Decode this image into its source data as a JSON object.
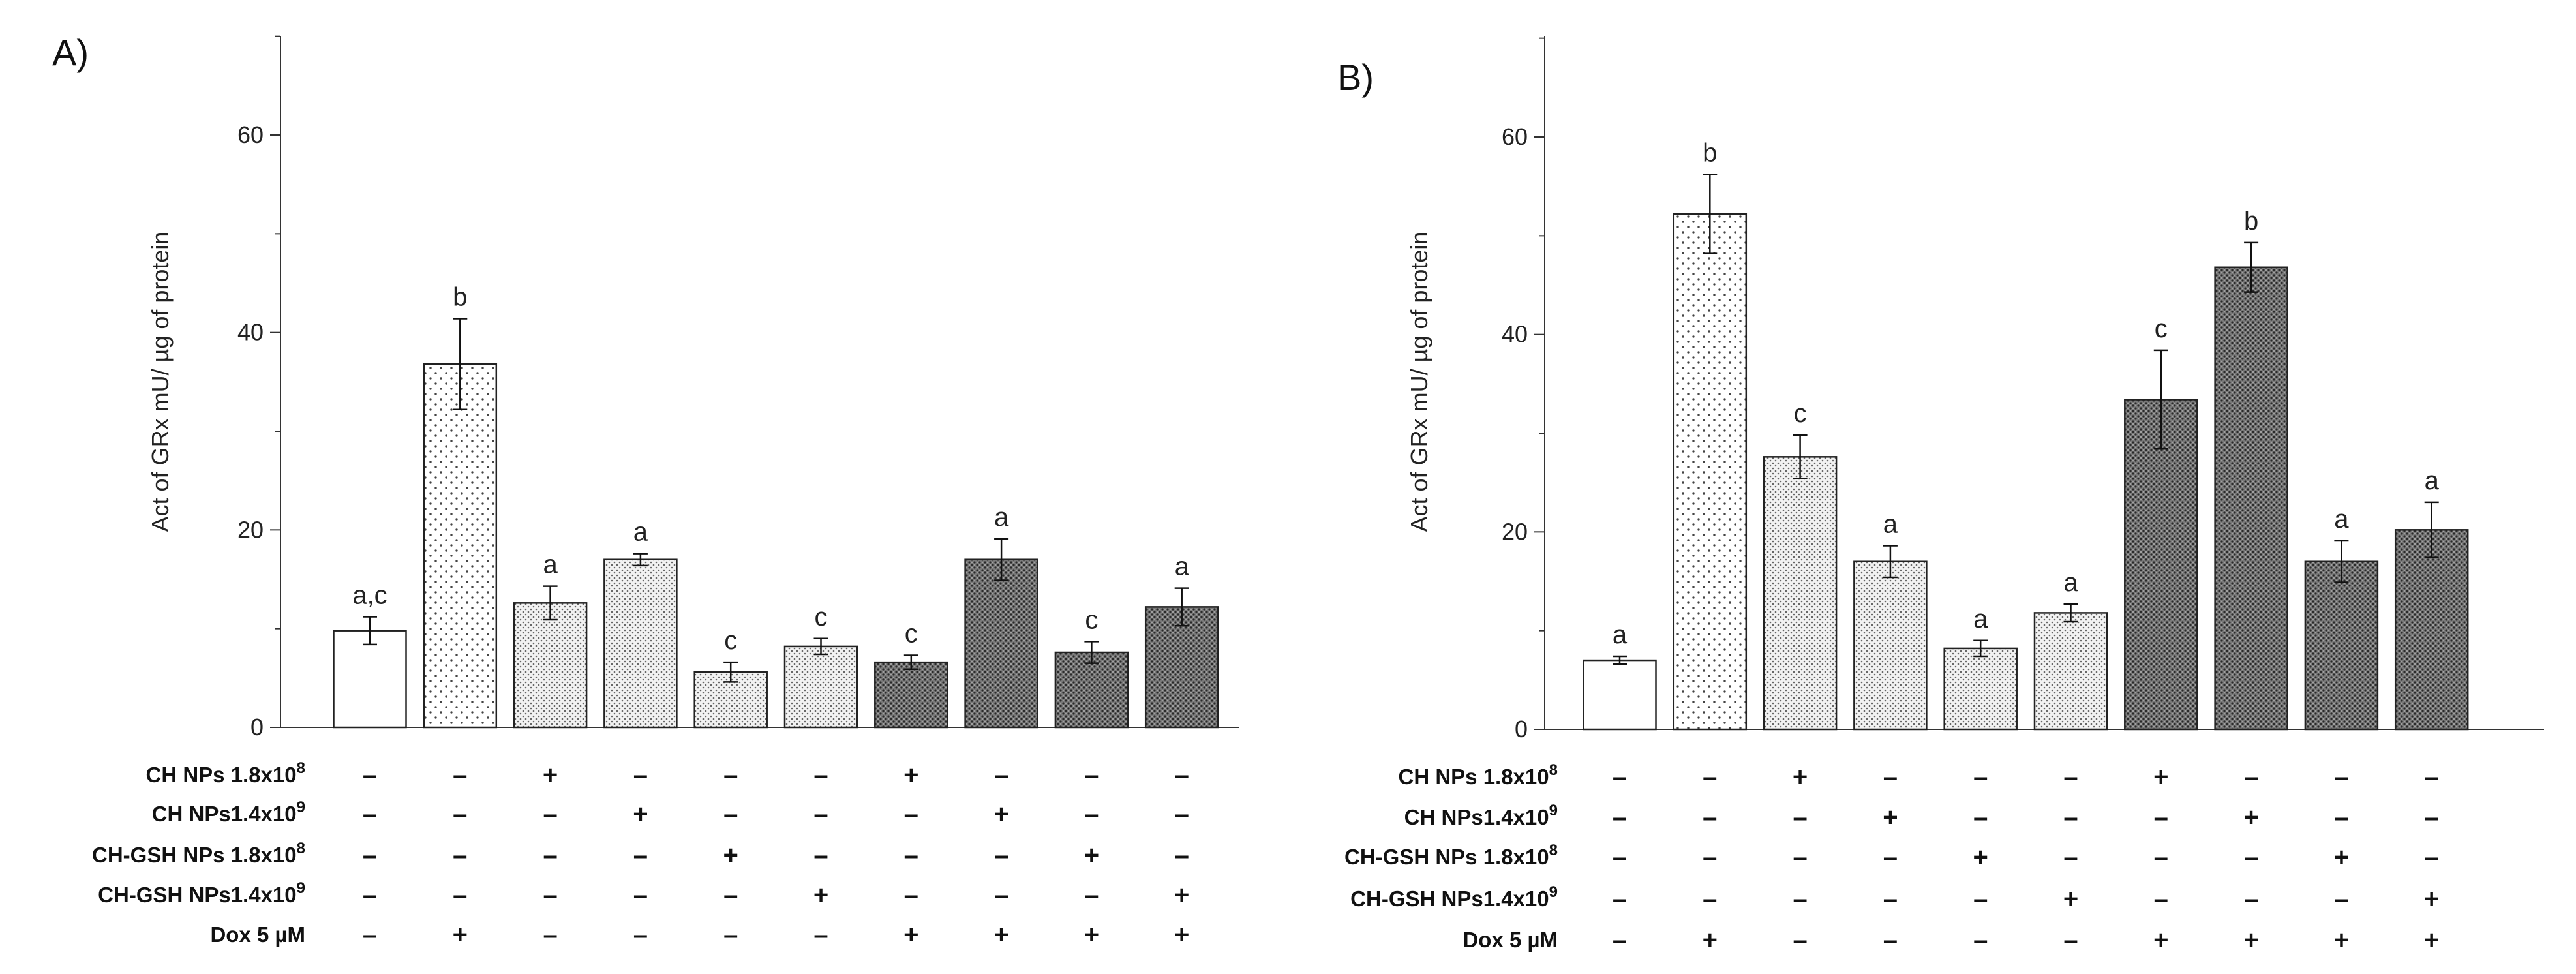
{
  "chart_data": [
    {
      "panel": "A)",
      "type": "bar",
      "ylabel": "Act of GRx mU/ µg of protein",
      "ylim": [
        0,
        70
      ],
      "yticks": [
        0,
        20,
        40,
        60
      ],
      "values": [
        9.8,
        36.8,
        12.6,
        17.0,
        5.6,
        8.2,
        6.6,
        17.0,
        7.6,
        12.2
      ],
      "errors": [
        1.4,
        4.6,
        1.7,
        0.6,
        1.0,
        0.8,
        0.7,
        2.1,
        1.1,
        1.9
      ],
      "significance": [
        "a,c",
        "b",
        "a",
        "a",
        "c",
        "c",
        "c",
        "a",
        "c",
        "a"
      ],
      "fills": [
        "white",
        "sparse",
        "medium",
        "medium",
        "medium",
        "medium",
        "dense",
        "dense",
        "dense",
        "dense"
      ]
    },
    {
      "panel": "B)",
      "type": "bar",
      "ylabel": "Act of GRx mU/ µg of protein",
      "ylim": [
        0,
        70
      ],
      "yticks": [
        0,
        20,
        40,
        60
      ],
      "values": [
        7.0,
        52.2,
        27.6,
        17.0,
        8.2,
        11.8,
        33.4,
        46.8,
        17.0,
        20.2
      ],
      "errors": [
        0.4,
        4.0,
        2.2,
        1.6,
        0.8,
        0.9,
        5.0,
        2.5,
        2.1,
        2.8
      ],
      "significance": [
        "a",
        "b",
        "c",
        "a",
        "a",
        "a",
        "c",
        "b",
        "a",
        "a"
      ],
      "fills": [
        "white",
        "sparse",
        "medium",
        "medium",
        "medium",
        "medium",
        "dense",
        "dense",
        "dense",
        "dense"
      ]
    }
  ],
  "treatments": {
    "row_labels": [
      {
        "text": "CH NPs 1.8x10",
        "sup": "8"
      },
      {
        "text": "CH NPs1.4x10",
        "sup": "9"
      },
      {
        "text": "CH-GSH NPs 1.8x10",
        "sup": "8"
      },
      {
        "text": "CH-GSH NPs1.4x10",
        "sup": "9"
      },
      {
        "text": "Dox 5 µM",
        "sup": ""
      }
    ],
    "matrix": [
      [
        "–",
        "–",
        "+",
        "–",
        "–",
        "–",
        "+",
        "–",
        "–",
        "–"
      ],
      [
        "–",
        "–",
        "–",
        "+",
        "–",
        "–",
        "–",
        "+",
        "–",
        "–"
      ],
      [
        "–",
        "–",
        "–",
        "–",
        "+",
        "–",
        "–",
        "–",
        "+",
        "–"
      ],
      [
        "–",
        "–",
        "–",
        "–",
        "–",
        "+",
        "–",
        "–",
        "–",
        "+"
      ],
      [
        "–",
        "+",
        "–",
        "–",
        "–",
        "–",
        "+",
        "+",
        "+",
        "+"
      ]
    ]
  }
}
